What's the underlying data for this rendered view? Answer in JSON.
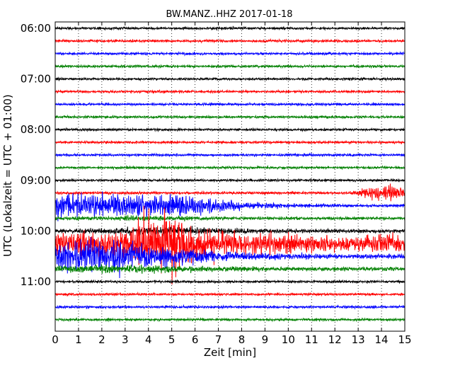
{
  "chart_data": {
    "type": "line",
    "title": "BW.MANZ..HHZ 2017-01-18",
    "xlabel": "Zeit  [min]",
    "ylabel": "UTC (Lokalzeit = UTC + 01:00)",
    "xlim": [
      0,
      15
    ],
    "x_ticks": [
      "0",
      "1",
      "2",
      "3",
      "4",
      "5",
      "6",
      "7",
      "8",
      "9",
      "10",
      "11",
      "12",
      "13",
      "14",
      "15"
    ],
    "y_ticks": [
      "06:00",
      "07:00",
      "08:00",
      "09:00",
      "10:00",
      "11:00"
    ],
    "grid": true,
    "grid_axis": "x",
    "grid_style": "dotted",
    "trace_minutes": 15,
    "trace_colors": [
      "#000000",
      "#ff0000",
      "#0000ff",
      "#008000"
    ],
    "traces": [
      {
        "start": "06:00",
        "color": "#000000",
        "amplitude": "low"
      },
      {
        "start": "06:15",
        "color": "#ff0000",
        "amplitude": "low"
      },
      {
        "start": "06:30",
        "color": "#0000ff",
        "amplitude": "low"
      },
      {
        "start": "06:45",
        "color": "#008000",
        "amplitude": "low"
      },
      {
        "start": "07:00",
        "color": "#000000",
        "amplitude": "low"
      },
      {
        "start": "07:15",
        "color": "#ff0000",
        "amplitude": "low"
      },
      {
        "start": "07:30",
        "color": "#0000ff",
        "amplitude": "low"
      },
      {
        "start": "07:45",
        "color": "#008000",
        "amplitude": "low"
      },
      {
        "start": "08:00",
        "color": "#000000",
        "amplitude": "low"
      },
      {
        "start": "08:15",
        "color": "#ff0000",
        "amplitude": "low"
      },
      {
        "start": "08:30",
        "color": "#0000ff",
        "amplitude": "low"
      },
      {
        "start": "08:45",
        "color": "#008000",
        "amplitude": "low"
      },
      {
        "start": "09:00",
        "color": "#000000",
        "amplitude": "low"
      },
      {
        "start": "09:15",
        "color": "#ff0000",
        "amplitude": "low",
        "event": "large burst from ~13 min, strongest ~14–15 min"
      },
      {
        "start": "09:30",
        "color": "#0000ff",
        "amplitude": "very high",
        "event": "strong oscillation 0–5 min, decaying to ~10 min"
      },
      {
        "start": "09:45",
        "color": "#008000",
        "amplitude": "low"
      },
      {
        "start": "10:00",
        "color": "#000000",
        "amplitude": "medium"
      },
      {
        "start": "10:15",
        "color": "#ff0000",
        "amplitude": "very high",
        "event": "strong oscillation over full 15 min, peaks 3–7 min"
      },
      {
        "start": "10:30",
        "color": "#0000ff",
        "amplitude": "very high",
        "event": "large oscillation 0–3 min, decaying to ~12 min"
      },
      {
        "start": "10:45",
        "color": "#008000",
        "amplitude": "medium"
      },
      {
        "start": "11:00",
        "color": "#000000",
        "amplitude": "low"
      },
      {
        "start": "11:15",
        "color": "#ff0000",
        "amplitude": "low"
      },
      {
        "start": "11:30",
        "color": "#0000ff",
        "amplitude": "low"
      },
      {
        "start": "11:45",
        "color": "#008000",
        "amplitude": "low"
      }
    ]
  }
}
